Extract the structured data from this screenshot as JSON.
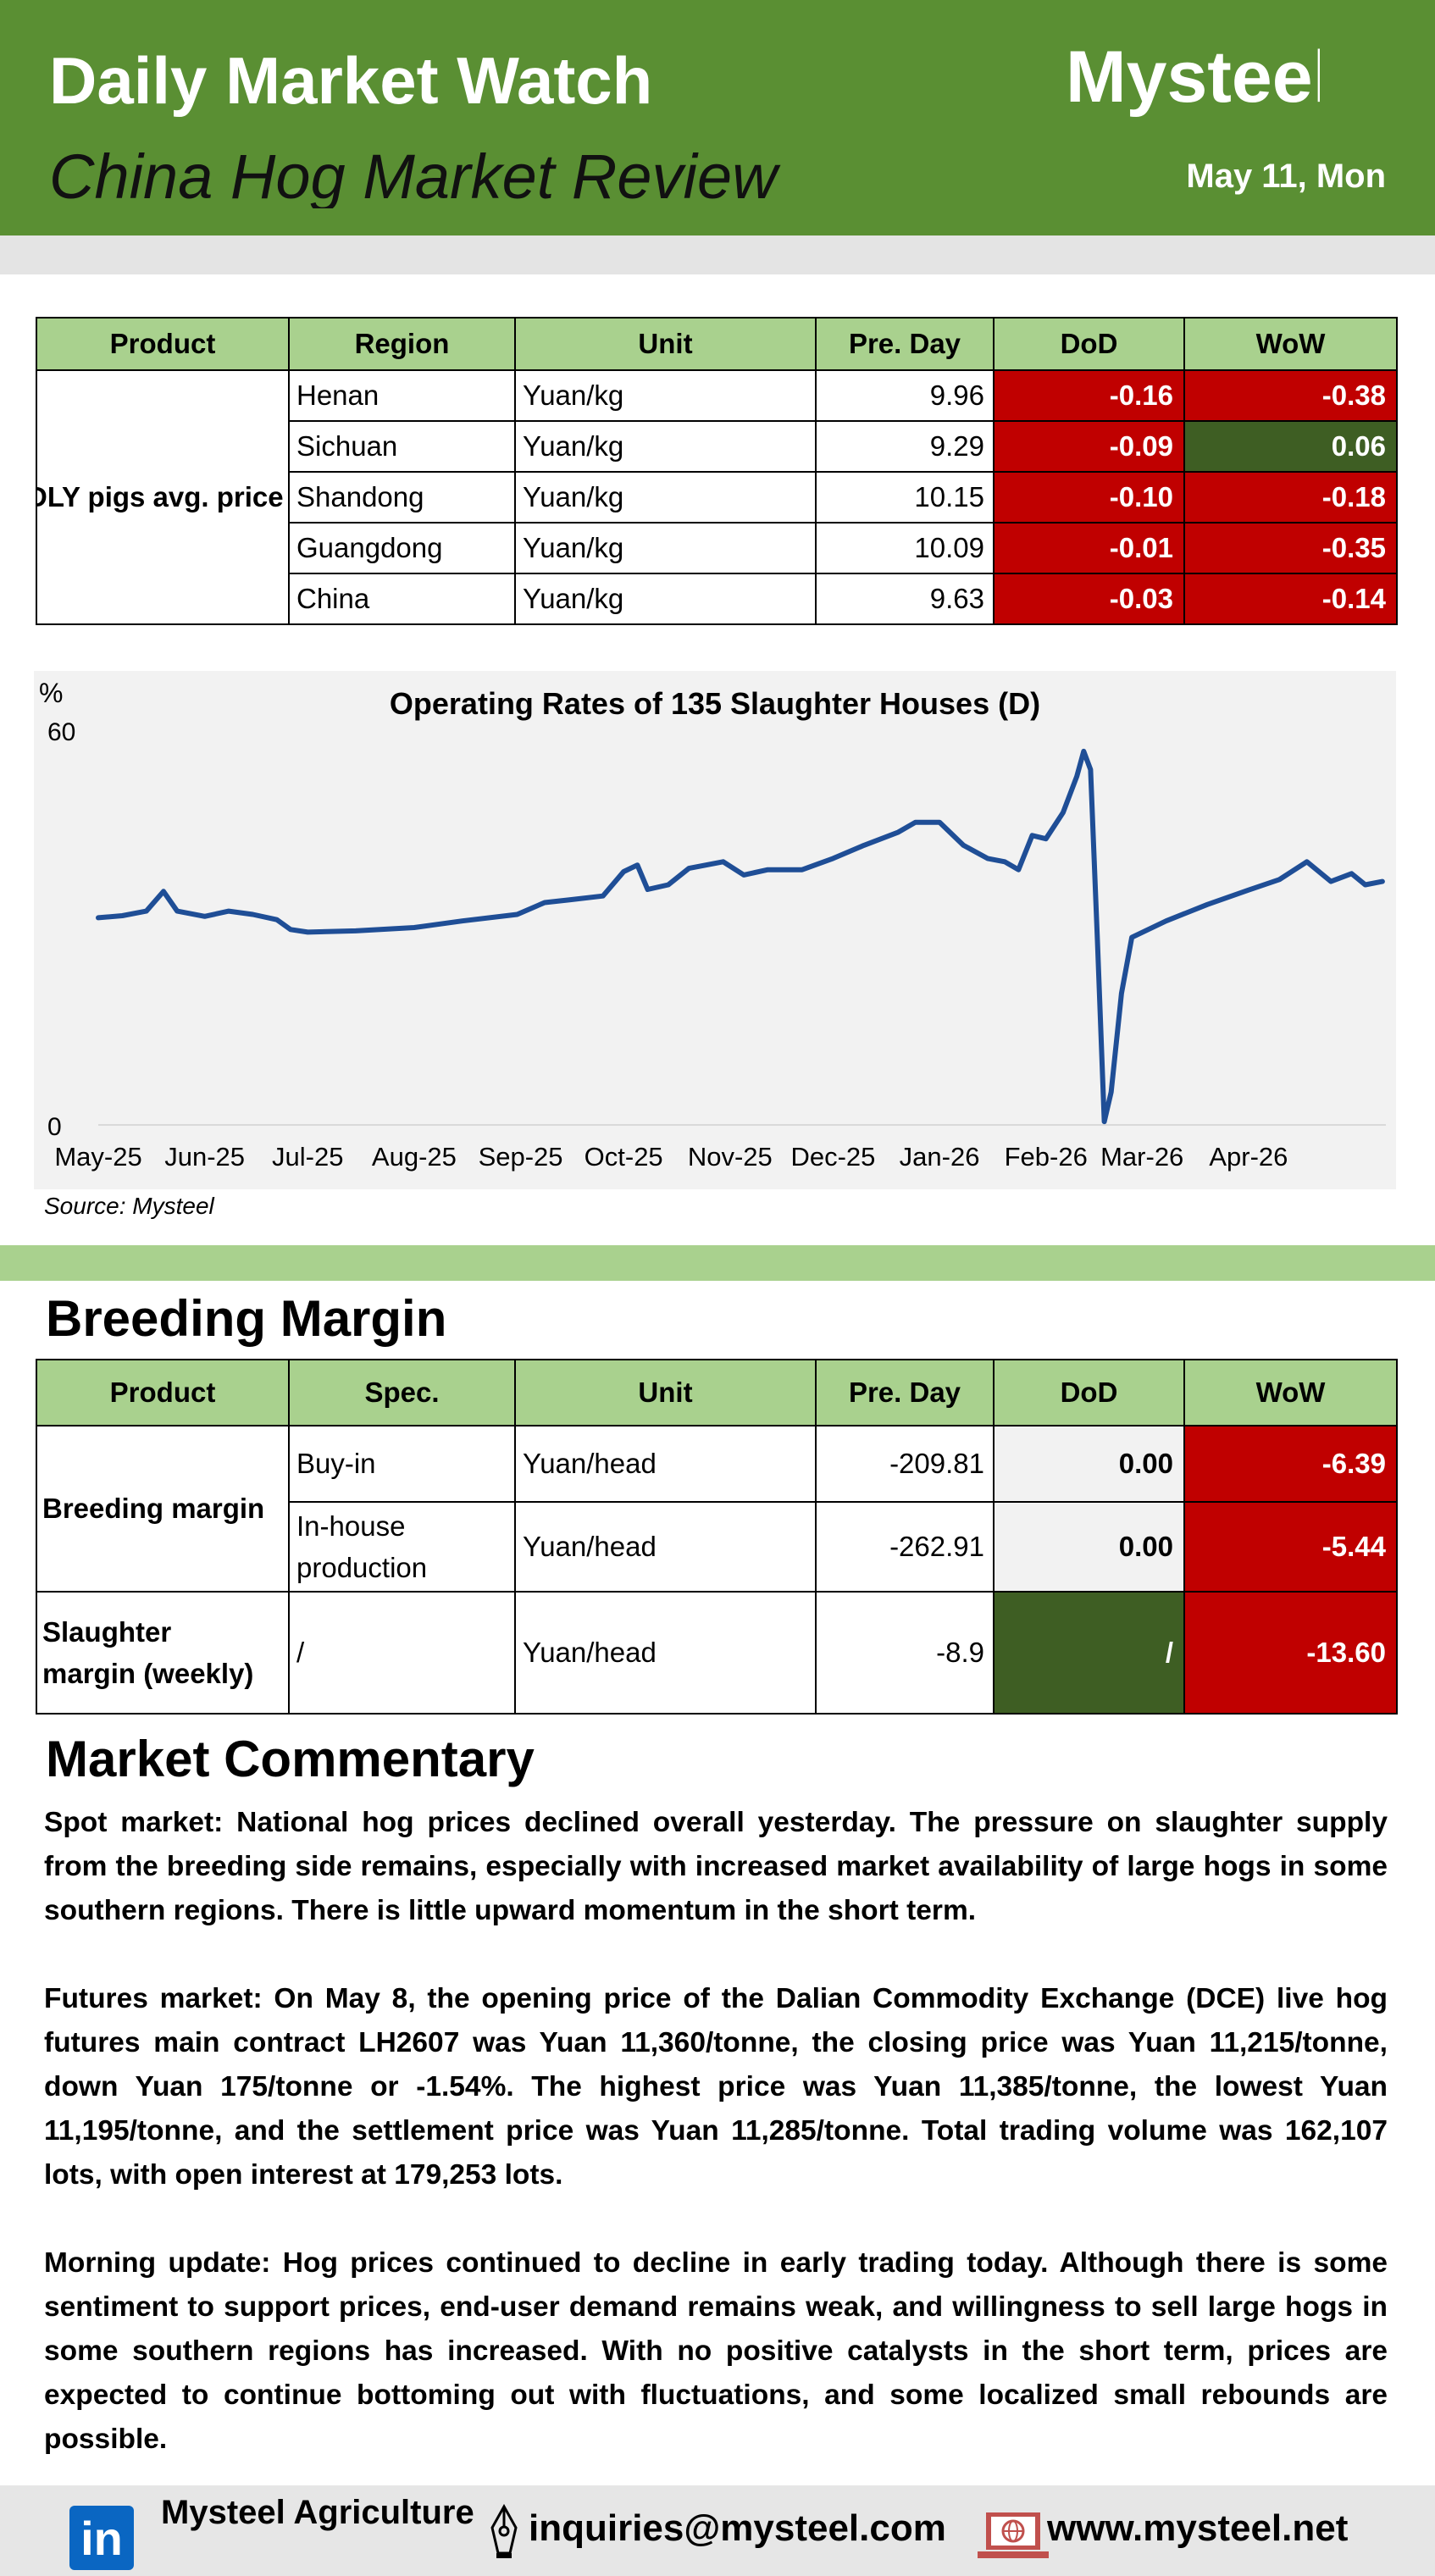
{
  "header": {
    "title": "Daily Market Watch",
    "subtitle": "China Hog Market Review",
    "logo_text": "Mysteel",
    "date": "May 11, Mon",
    "colors": {
      "header_bg": "#5a8f33",
      "table_header": "#a9d18e",
      "negative": "#c00000",
      "positive": "#3e5e23"
    }
  },
  "price_table": {
    "headers": [
      "Product",
      "Region",
      "Unit",
      "Pre. Day",
      "DoD",
      "WoW"
    ],
    "product": "DLY pigs avg. price",
    "rows": [
      {
        "region": "Henan",
        "unit": "Yuan/kg",
        "pre_day": "9.96",
        "dod": "-0.16",
        "wow": "-0.38"
      },
      {
        "region": "Sichuan",
        "unit": "Yuan/kg",
        "pre_day": "9.29",
        "dod": "-0.09",
        "wow": "0.06"
      },
      {
        "region": "Shandong",
        "unit": "Yuan/kg",
        "pre_day": "10.15",
        "dod": "-0.10",
        "wow": "-0.18"
      },
      {
        "region": "Guangdong",
        "unit": "Yuan/kg",
        "pre_day": "10.09",
        "dod": "-0.01",
        "wow": "-0.35"
      },
      {
        "region": "China",
        "unit": "Yuan/kg",
        "pre_day": "9.63",
        "dod": "-0.03",
        "wow": "-0.14"
      }
    ]
  },
  "chart_data": {
    "type": "line",
    "title": "Operating Rates of 135 Slaughter Houses (D)",
    "ylabel": "%",
    "ylim": [
      0,
      60
    ],
    "ytick_labels": [
      "60",
      "0"
    ],
    "grid": false,
    "xtick_labels": [
      "May-25",
      "Jun-25",
      "Jul-25",
      "Aug-25",
      "Sep-25",
      "Oct-25",
      "Nov-25",
      "Dec-25",
      "Jan-26",
      "Feb-26",
      "Mar-26",
      "Apr-26"
    ],
    "series": [
      {
        "color": "#1f4e96",
        "points": [
          [
            "2025-05-01",
            31.5
          ],
          [
            "2025-05-08",
            31.8
          ],
          [
            "2025-05-15",
            32.5
          ],
          [
            "2025-05-20",
            35.5
          ],
          [
            "2025-05-24",
            32.5
          ],
          [
            "2025-06-01",
            31.7
          ],
          [
            "2025-06-08",
            32.5
          ],
          [
            "2025-06-15",
            32.0
          ],
          [
            "2025-06-22",
            31.2
          ],
          [
            "2025-06-26",
            29.7
          ],
          [
            "2025-07-01",
            29.3
          ],
          [
            "2025-07-15",
            29.5
          ],
          [
            "2025-08-01",
            30.0
          ],
          [
            "2025-08-15",
            31.0
          ],
          [
            "2025-08-31",
            32.0
          ],
          [
            "2025-09-08",
            33.8
          ],
          [
            "2025-09-15",
            34.2
          ],
          [
            "2025-09-25",
            34.8
          ],
          [
            "2025-10-01",
            38.5
          ],
          [
            "2025-10-05",
            39.5
          ],
          [
            "2025-10-08",
            35.8
          ],
          [
            "2025-10-14",
            36.5
          ],
          [
            "2025-10-20",
            39.0
          ],
          [
            "2025-10-30",
            40.0
          ],
          [
            "2025-11-05",
            38.0
          ],
          [
            "2025-11-12",
            38.8
          ],
          [
            "2025-11-22",
            38.8
          ],
          [
            "2025-12-01",
            40.5
          ],
          [
            "2025-12-10",
            42.5
          ],
          [
            "2025-12-20",
            44.5
          ],
          [
            "2025-12-25",
            46.0
          ],
          [
            "2026-01-01",
            46.0
          ],
          [
            "2026-01-08",
            42.5
          ],
          [
            "2026-01-15",
            40.5
          ],
          [
            "2026-01-20",
            40.0
          ],
          [
            "2026-01-24",
            38.8
          ],
          [
            "2026-01-28",
            44.0
          ],
          [
            "2026-02-01",
            43.5
          ],
          [
            "2026-02-06",
            47.5
          ],
          [
            "2026-02-10",
            53.0
          ],
          [
            "2026-02-12",
            56.8
          ],
          [
            "2026-02-14",
            54.0
          ],
          [
            "2026-02-16",
            28.0
          ],
          [
            "2026-02-18",
            0.5
          ],
          [
            "2026-02-20",
            5.0
          ],
          [
            "2026-02-23",
            20.0
          ],
          [
            "2026-02-26",
            28.5
          ],
          [
            "2026-03-08",
            31.0
          ],
          [
            "2026-03-20",
            33.5
          ],
          [
            "2026-04-01",
            35.7
          ],
          [
            "2026-04-10",
            37.3
          ],
          [
            "2026-04-18",
            40.0
          ],
          [
            "2026-04-25",
            37.0
          ],
          [
            "2026-05-01",
            38.2
          ],
          [
            "2026-05-05",
            36.5
          ],
          [
            "2026-05-10",
            37.0
          ]
        ]
      }
    ],
    "source": "Source: Mysteel"
  },
  "breeding": {
    "heading": "Breeding Margin",
    "headers": [
      "Product",
      "Spec.",
      "Unit",
      "Pre. Day",
      "DoD",
      "WoW"
    ],
    "breeding_product": "Breeding margin",
    "rows": [
      {
        "spec": "Buy-in",
        "unit": "Yuan/head",
        "pre_day": "-209.81",
        "dod": "0.00",
        "wow": "-6.39"
      },
      {
        "spec": "In-house production",
        "unit": "Yuan/head",
        "pre_day": "-262.91",
        "dod": "0.00",
        "wow": "-5.44"
      }
    ],
    "slaughter": {
      "product": "Slaughter margin (weekly)",
      "spec": "/",
      "unit": "Yuan/head",
      "pre_day": "-8.9",
      "dod": "/",
      "wow": "-13.60"
    }
  },
  "commentary": {
    "heading": "Market Commentary",
    "paragraphs": [
      "Spot market: National hog prices declined overall yesterday. The pressure on slaughter supply from the breeding side remains, especially with increased market availability of large hogs in some southern regions. There is little upward momentum in the short term.",
      "Futures market: On May 8, the opening price of the Dalian Commodity Exchange (DCE) live hog futures main contract LH2607 was Yuan 11,360/tonne, the closing price was Yuan 11,215/tonne, down Yuan 175/tonne or -1.54%. The highest price was Yuan 11,385/tonne, the lowest Yuan 11,195/tonne, and the settlement price was Yuan 11,285/tonne. Total trading volume was 162,107 lots, with open interest at 179,253 lots.",
      "Morning update: Hog prices continued to decline in early trading today. Although there is some sentiment to support prices, end-user demand remains weak, and willingness to sell large hogs in some southern regions has increased. With no positive catalysts in the short term, prices are expected to continue bottoming out with fluctuations, and some localized small rebounds are possible."
    ]
  },
  "footer": {
    "company": "Mysteel Agriculture",
    "linkedin_icon": "linkedin-icon",
    "email": "inquiries@mysteel.com",
    "email_icon": "pen-nib-icon",
    "website": "www.mysteel.net",
    "web_icon": "laptop-globe-icon"
  }
}
